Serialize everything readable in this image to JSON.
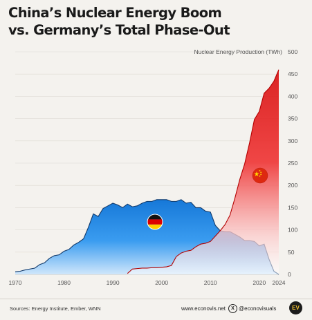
{
  "header": {
    "title_line1": "China’s Nuclear Energy Boom",
    "title_line2": "vs. Germany’s Total Phase-Out"
  },
  "footer": {
    "sources": "Sources: Energy Institute, Ember, WNN",
    "website": "www.econovis.net",
    "handle": "@econovisuals",
    "logo_text": "EV"
  },
  "colors": {
    "germany": "#1f86e0",
    "china": "#e51f1f",
    "axis_text": "#666666",
    "background": "#f4f2ee"
  },
  "chart_data": {
    "type": "area",
    "ylabel": "Nuclear Energy Production (TWh)",
    "ylim": [
      0,
      500
    ],
    "xlim": [
      1970,
      2024
    ],
    "y_ticks": [
      0,
      50,
      100,
      150,
      200,
      250,
      300,
      350,
      400,
      450,
      500
    ],
    "x_ticks": [
      "1970",
      "1980",
      "1990",
      "2000",
      "2010",
      "2020",
      "2024"
    ],
    "x_tick_values": [
      1970,
      1980,
      1990,
      2000,
      2010,
      2020,
      2024
    ],
    "series": [
      {
        "key": "germany",
        "flag_icon": "germany-flag-icon",
        "x": [
          1970,
          1971,
          1972,
          1973,
          1974,
          1975,
          1976,
          1977,
          1978,
          1979,
          1980,
          1981,
          1982,
          1983,
          1984,
          1985,
          1986,
          1987,
          1988,
          1989,
          1990,
          1991,
          1992,
          1993,
          1994,
          1995,
          1996,
          1997,
          1998,
          1999,
          2000,
          2001,
          2002,
          2003,
          2004,
          2005,
          2006,
          2007,
          2008,
          2009,
          2010,
          2011,
          2012,
          2013,
          2014,
          2015,
          2016,
          2017,
          2018,
          2019,
          2020,
          2021,
          2022,
          2023,
          2024
        ],
        "values": [
          6,
          7,
          10,
          12,
          14,
          22,
          26,
          36,
          42,
          44,
          52,
          56,
          66,
          72,
          80,
          106,
          136,
          130,
          148,
          154,
          160,
          156,
          150,
          158,
          152,
          154,
          160,
          164,
          164,
          168,
          168,
          168,
          164,
          164,
          168,
          160,
          162,
          150,
          150,
          142,
          140,
          110,
          98,
          96,
          96,
          90,
          84,
          76,
          76,
          74,
          64,
          68,
          34,
          7,
          0
        ]
      },
      {
        "key": "china",
        "flag_icon": "china-flag-icon",
        "x": [
          1993,
          1994,
          1995,
          1996,
          1997,
          1998,
          1999,
          2000,
          2001,
          2002,
          2003,
          2004,
          2005,
          2006,
          2007,
          2008,
          2009,
          2010,
          2011,
          2012,
          2013,
          2014,
          2015,
          2016,
          2017,
          2018,
          2019,
          2020,
          2021,
          2022,
          2023,
          2024
        ],
        "values": [
          2,
          12,
          13,
          14,
          14,
          15,
          15,
          16,
          17,
          20,
          40,
          48,
          52,
          54,
          62,
          68,
          70,
          74,
          86,
          98,
          112,
          133,
          171,
          213,
          248,
          295,
          348,
          366,
          407,
          418,
          434,
          460
        ]
      }
    ]
  }
}
